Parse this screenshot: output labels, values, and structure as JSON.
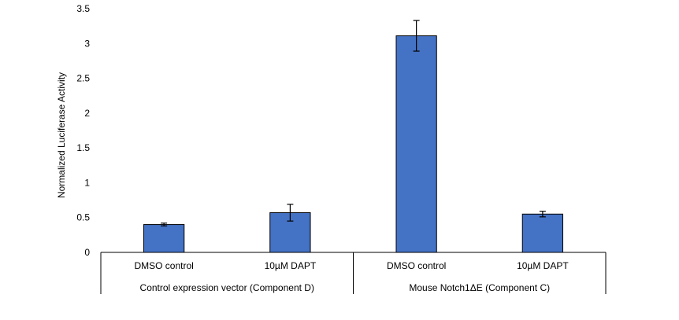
{
  "chart_data": {
    "type": "bar",
    "title": "",
    "xlabel": "",
    "ylabel": "Normalized Luciferase Activity",
    "ylim": [
      0,
      3.5
    ],
    "yticks": [
      0,
      0.5,
      1,
      1.5,
      2,
      2.5,
      3,
      3.5
    ],
    "ytick_labels": [
      "0",
      "0.5",
      "1",
      "1.5",
      "2",
      "2.5",
      "3",
      "3.5"
    ],
    "grid": false,
    "legend": "none",
    "bar_color": "#4472C4",
    "groups": [
      {
        "label": "Control expression vector (Component D)",
        "categories": [
          "DMSO control",
          "10µM DAPT"
        ]
      },
      {
        "label": "Mouse Notch1ΔE (Component C)",
        "categories": [
          "DMSO control",
          "10µM DAPT"
        ]
      }
    ],
    "categories": [
      "DMSO control",
      "10µM DAPT",
      "DMSO control",
      "10µM DAPT"
    ],
    "values": [
      0.4,
      0.57,
      3.11,
      0.55
    ],
    "errors": [
      0.02,
      0.12,
      0.22,
      0.04
    ]
  }
}
